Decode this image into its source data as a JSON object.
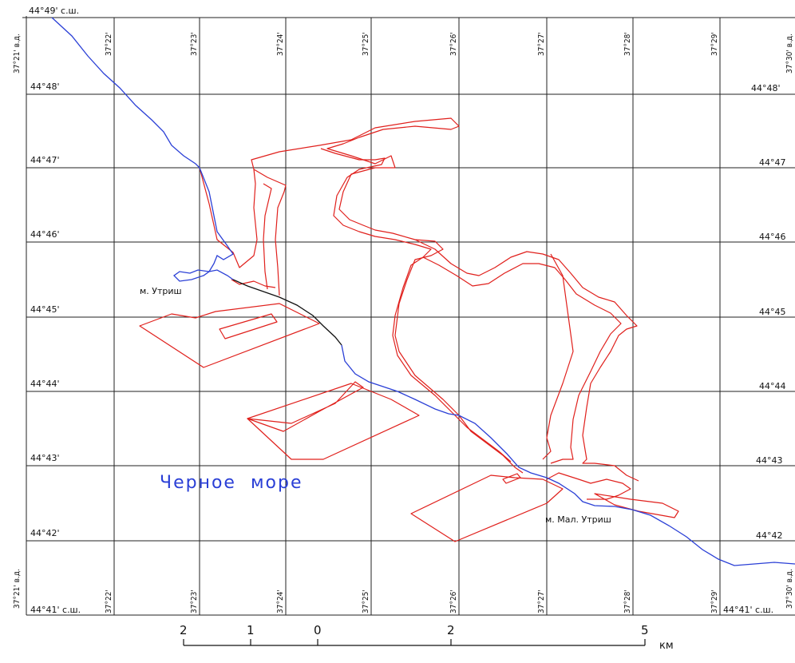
{
  "lat_labels": {
    "top": "44°49' с.ш.",
    "rows_left": [
      "44°48'",
      "44°47'",
      "44°46'",
      "44°45'",
      "44°44'",
      "44°43'",
      "44°42'"
    ],
    "rows_right": [
      "44°48'",
      "44°47",
      "44°46",
      "44°45",
      "44°44",
      "44°43",
      "44°42"
    ],
    "bottom_left": "44°41' с.ш.",
    "bottom_right": "44°41' с.ш."
  },
  "lon_labels": {
    "left_edge": "37°21' в.д.",
    "right_edge": "37°30' в.д.",
    "columns": [
      "37°22'",
      "37°23'",
      "37°24'",
      "37°25'",
      "37°26'",
      "37°27'",
      "37°28'",
      "37°29'"
    ]
  },
  "place_labels": {
    "cape_utrish": "м. Утриш",
    "cape_mal_utrish": "м. Мал. Утриш",
    "sea": "Черное  море"
  },
  "scale_bar": {
    "ticks": [
      "2",
      "1",
      "0",
      "2",
      "5"
    ],
    "unit": "км"
  },
  "colors": {
    "boundary": "#e0201c",
    "coast": "#2a3fd6",
    "grid": "#222222"
  }
}
